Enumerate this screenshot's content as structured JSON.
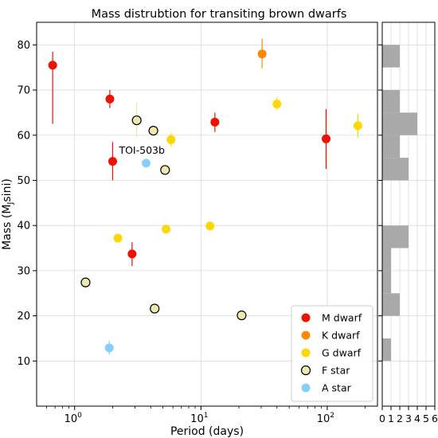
{
  "chart_data": [
    {
      "type": "scatter",
      "title": "Mass distrubtion for transiting brown dwarfs",
      "xlabel": "Period (days)",
      "ylabel": "Mass (M",
      "ylabel_sub": "J",
      "ylabel_tail": "sini)",
      "xscale": "log",
      "xlim": [
        0.5,
        250
      ],
      "ylim": [
        0,
        85
      ],
      "grid": true,
      "legend_position": "bottom-right",
      "x_ticks": [
        {
          "value": 1,
          "base": "10",
          "exp": "0"
        },
        {
          "value": 10,
          "base": "10",
          "exp": "1"
        },
        {
          "value": 100,
          "base": "10",
          "exp": "2"
        }
      ],
      "y_ticks": [
        10,
        20,
        30,
        40,
        50,
        60,
        70,
        80
      ],
      "series": [
        {
          "name": "M dwarf",
          "color": "#ee1100",
          "points": [
            {
              "x": 0.67,
              "y": 75.5,
              "err": [
                62.5,
                78.5
              ]
            },
            {
              "x": 1.9,
              "y": 68.0,
              "err": [
                66.0,
                70.0
              ]
            },
            {
              "x": 2.0,
              "y": 54.2,
              "err": [
                50.0,
                58.5
              ]
            },
            {
              "x": 2.85,
              "y": 33.7,
              "err": [
                31.0,
                36.3
              ]
            },
            {
              "x": 12.9,
              "y": 62.9,
              "err": [
                60.7,
                65.0
              ]
            },
            {
              "x": 98.0,
              "y": 59.2,
              "err": [
                52.5,
                65.8
              ]
            }
          ]
        },
        {
          "name": "K dwarf",
          "color": "#ff8800",
          "points": [
            {
              "x": 30.5,
              "y": 78.0,
              "err": [
                74.8,
                81.3
              ]
            }
          ]
        },
        {
          "name": "G dwarf",
          "color": "#ffd700",
          "points": [
            {
              "x": 2.2,
              "y": 37.2
            },
            {
              "x": 5.3,
              "y": 39.2
            },
            {
              "x": 5.8,
              "y": 59.0,
              "err": [
                57.5,
                60.5
              ]
            },
            {
              "x": 11.8,
              "y": 39.9
            },
            {
              "x": 40.0,
              "y": 66.9,
              "err": [
                65.5,
                68.4
              ]
            },
            {
              "x": 175.0,
              "y": 62.1,
              "err": [
                59.4,
                64.8
              ]
            }
          ]
        },
        {
          "name": "F star",
          "color": "#eee8aa",
          "points": [
            {
              "x": 1.22,
              "y": 27.4
            },
            {
              "x": 3.1,
              "y": 63.3,
              "err": [
                59.5,
                67.2
              ]
            },
            {
              "x": 4.2,
              "y": 61.0
            },
            {
              "x": 4.3,
              "y": 21.6
            },
            {
              "x": 5.2,
              "y": 52.3
            },
            {
              "x": 21.0,
              "y": 20.1
            }
          ]
        },
        {
          "name": "A star",
          "color": "#87cefa",
          "points": [
            {
              "x": 1.88,
              "y": 12.9,
              "err": [
                11.4,
                14.5
              ]
            },
            {
              "x": 3.68,
              "y": 53.8
            }
          ]
        }
      ],
      "annotations": [
        {
          "text": "TOI-503b",
          "x": 3.68,
          "y": 53.8
        }
      ]
    },
    {
      "type": "bar",
      "orientation": "horizontal",
      "title": "",
      "xlim": [
        0,
        6
      ],
      "x_ticks": [
        0,
        1,
        2,
        3,
        4,
        5,
        6
      ],
      "color": "#a9a9a9",
      "bins": [
        {
          "y0": 10,
          "y1": 15,
          "count": 1
        },
        {
          "y0": 15,
          "y1": 20,
          "count": 0
        },
        {
          "y0": 20,
          "y1": 25,
          "count": 2
        },
        {
          "y0": 25,
          "y1": 30,
          "count": 1
        },
        {
          "y0": 30,
          "y1": 35,
          "count": 1
        },
        {
          "y0": 35,
          "y1": 40,
          "count": 3
        },
        {
          "y0": 40,
          "y1": 45,
          "count": 0
        },
        {
          "y0": 45,
          "y1": 50,
          "count": 0
        },
        {
          "y0": 50,
          "y1": 55,
          "count": 3
        },
        {
          "y0": 55,
          "y1": 60,
          "count": 2
        },
        {
          "y0": 60,
          "y1": 65,
          "count": 4
        },
        {
          "y0": 65,
          "y1": 70,
          "count": 2
        },
        {
          "y0": 70,
          "y1": 75,
          "count": 0
        },
        {
          "y0": 75,
          "y1": 80,
          "count": 2
        }
      ]
    }
  ]
}
